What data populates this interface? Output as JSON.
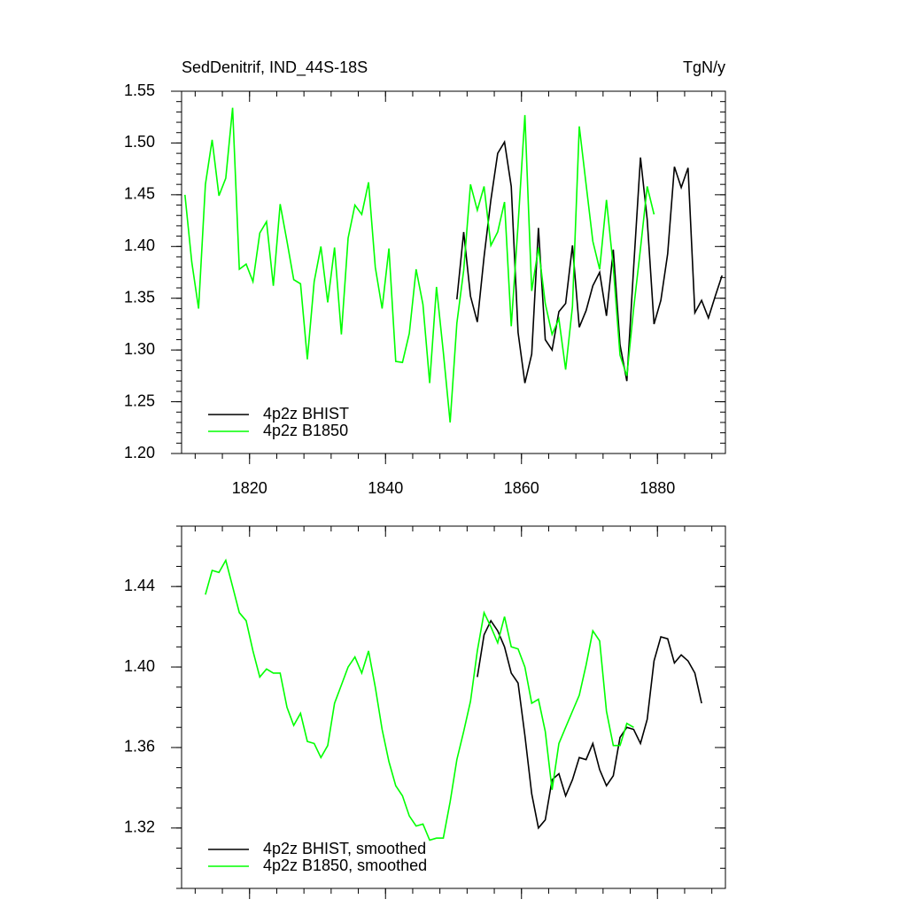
{
  "chart_data": [
    {
      "type": "line",
      "title": "SedDenitrif, IND_44S-18S",
      "units": "TgN/y",
      "xlim": [
        1810,
        1890
      ],
      "xticks": [
        1820,
        1840,
        1860,
        1880
      ],
      "xtick_labels": true,
      "xminor_step": 4,
      "ylim": [
        1.2,
        1.55
      ],
      "yticks": [
        {
          "value": 1.2,
          "label": "1.20"
        },
        1.25,
        {
          "value": 1.3,
          "label": "1.30"
        },
        1.35,
        {
          "value": 1.4,
          "label": "1.40"
        },
        1.45,
        {
          "value": 1.5,
          "label": "1.50"
        },
        1.55
      ],
      "yminor_step": 0.01,
      "legend": "lower left",
      "series": [
        {
          "name": "4p2z BHIST",
          "color": "#000000",
          "x": [
            1850.5,
            1851.5,
            1852.5,
            1853.5,
            1854.5,
            1855.5,
            1856.5,
            1857.5,
            1858.5,
            1859.5,
            1860.5,
            1861.5,
            1862.5,
            1863.5,
            1864.5,
            1865.5,
            1866.5,
            1867.5,
            1868.5,
            1869.5,
            1870.5,
            1871.5,
            1872.5,
            1873.5,
            1874.5,
            1875.5,
            1876.5,
            1877.5,
            1878.5,
            1879.5,
            1880.5,
            1881.5,
            1882.5,
            1883.5,
            1884.5,
            1885.5,
            1886.5,
            1887.5,
            1888.5,
            1889.5
          ],
          "values": [
            1.349,
            1.414,
            1.352,
            1.327,
            1.39,
            1.445,
            1.49,
            1.501,
            1.458,
            1.317,
            1.268,
            1.296,
            1.418,
            1.31,
            1.3,
            1.337,
            1.345,
            1.401,
            1.322,
            1.338,
            1.362,
            1.375,
            1.333,
            1.397,
            1.305,
            1.27,
            1.38,
            1.486,
            1.426,
            1.325,
            1.348,
            1.393,
            1.477,
            1.457,
            1.476,
            1.336,
            1.348,
            1.331,
            1.352,
            1.372
          ]
        },
        {
          "name": "4p2z B1850",
          "color": "#00ff00",
          "x": [
            1810.5,
            1811.5,
            1812.5,
            1813.5,
            1814.5,
            1815.5,
            1816.5,
            1817.5,
            1818.5,
            1819.5,
            1820.5,
            1821.5,
            1822.5,
            1823.5,
            1824.5,
            1825.5,
            1826.5,
            1827.5,
            1828.5,
            1829.5,
            1830.5,
            1831.5,
            1832.5,
            1833.5,
            1834.5,
            1835.5,
            1836.5,
            1837.5,
            1838.5,
            1839.5,
            1840.5,
            1841.5,
            1842.5,
            1843.5,
            1844.5,
            1845.5,
            1846.5,
            1847.5,
            1848.5,
            1849.5,
            1850.5,
            1851.5,
            1852.5,
            1853.5,
            1854.5,
            1855.5,
            1856.5,
            1857.5,
            1858.5,
            1859.5,
            1860.5,
            1861.5,
            1862.5,
            1863.5,
            1864.5,
            1865.5,
            1866.5,
            1867.5,
            1868.5,
            1869.5,
            1870.5,
            1871.5,
            1872.5,
            1873.5,
            1874.5,
            1875.5,
            1876.5,
            1877.5,
            1878.5,
            1879.5
          ],
          "values": [
            1.45,
            1.385,
            1.34,
            1.46,
            1.503,
            1.449,
            1.466,
            1.534,
            1.378,
            1.383,
            1.366,
            1.413,
            1.424,
            1.362,
            1.441,
            1.405,
            1.368,
            1.364,
            1.291,
            1.366,
            1.4,
            1.346,
            1.399,
            1.315,
            1.408,
            1.44,
            1.431,
            1.462,
            1.38,
            1.34,
            1.398,
            1.289,
            1.288,
            1.316,
            1.378,
            1.344,
            1.268,
            1.361,
            1.298,
            1.23,
            1.326,
            1.377,
            1.46,
            1.435,
            1.458,
            1.401,
            1.414,
            1.443,
            1.323,
            1.421,
            1.527,
            1.357,
            1.399,
            1.345,
            1.315,
            1.33,
            1.281,
            1.342,
            1.516,
            1.46,
            1.405,
            1.378,
            1.445,
            1.38,
            1.295,
            1.275,
            1.34,
            1.398,
            1.458,
            1.431
          ]
        }
      ]
    },
    {
      "type": "line",
      "xlim": [
        1810,
        1890
      ],
      "xticks": [
        1820,
        1840,
        1860,
        1880
      ],
      "xtick_labels": false,
      "xminor_step": 4,
      "ylim": [
        1.29,
        1.47
      ],
      "yticks": [
        1.32,
        1.36,
        {
          "value": 1.4,
          "label": "1.40"
        },
        1.44
      ],
      "yminor_step": 0.01,
      "legend": "lower left",
      "series": [
        {
          "name": "4p2z BHIST, smoothed",
          "color": "#000000",
          "x": [
            1853.5,
            1854.5,
            1855.5,
            1856.5,
            1857.5,
            1858.5,
            1859.5,
            1860.5,
            1861.5,
            1862.5,
            1863.5,
            1864.5,
            1865.5,
            1866.5,
            1867.5,
            1868.5,
            1869.5,
            1870.5,
            1871.5,
            1872.5,
            1873.5,
            1874.5,
            1875.5,
            1876.5,
            1877.5,
            1878.5,
            1879.5,
            1880.5,
            1881.5,
            1882.5,
            1883.5,
            1884.5,
            1885.5,
            1886.5
          ],
          "values": [
            1.395,
            1.416,
            1.423,
            1.418,
            1.41,
            1.397,
            1.392,
            1.366,
            1.337,
            1.32,
            1.324,
            1.344,
            1.347,
            1.336,
            1.344,
            1.355,
            1.354,
            1.362,
            1.349,
            1.341,
            1.346,
            1.365,
            1.37,
            1.369,
            1.362,
            1.374,
            1.403,
            1.415,
            1.414,
            1.402,
            1.406,
            1.403,
            1.397,
            1.382
          ]
        },
        {
          "name": "4p2z B1850, smoothed",
          "color": "#00ff00",
          "x": [
            1813.5,
            1814.5,
            1815.5,
            1816.5,
            1817.5,
            1818.5,
            1819.5,
            1820.5,
            1821.5,
            1822.5,
            1823.5,
            1824.5,
            1825.5,
            1826.5,
            1827.5,
            1828.5,
            1829.5,
            1830.5,
            1831.5,
            1832.5,
            1833.5,
            1834.5,
            1835.5,
            1836.5,
            1837.5,
            1838.5,
            1839.5,
            1840.5,
            1841.5,
            1842.5,
            1843.5,
            1844.5,
            1845.5,
            1846.5,
            1847.5,
            1848.5,
            1849.5,
            1850.5,
            1851.5,
            1852.5,
            1853.5,
            1854.5,
            1855.5,
            1856.5,
            1857.5,
            1858.5,
            1859.5,
            1860.5,
            1861.5,
            1862.5,
            1863.5,
            1864.5,
            1865.5,
            1866.5,
            1867.5,
            1868.5,
            1869.5,
            1870.5,
            1871.5,
            1872.5,
            1873.5,
            1874.5,
            1875.5,
            1876.5
          ],
          "values": [
            1.436,
            1.448,
            1.447,
            1.453,
            1.44,
            1.427,
            1.423,
            1.408,
            1.395,
            1.399,
            1.397,
            1.397,
            1.38,
            1.371,
            1.377,
            1.363,
            1.362,
            1.355,
            1.361,
            1.382,
            1.391,
            1.4,
            1.405,
            1.397,
            1.408,
            1.39,
            1.369,
            1.353,
            1.341,
            1.336,
            1.326,
            1.321,
            1.322,
            1.314,
            1.315,
            1.315,
            1.333,
            1.354,
            1.368,
            1.383,
            1.408,
            1.427,
            1.42,
            1.412,
            1.425,
            1.41,
            1.409,
            1.4,
            1.382,
            1.384,
            1.368,
            1.339,
            1.362,
            1.37,
            1.378,
            1.386,
            1.401,
            1.418,
            1.413,
            1.378,
            1.361,
            1.361,
            1.372,
            1.37
          ]
        }
      ]
    }
  ]
}
